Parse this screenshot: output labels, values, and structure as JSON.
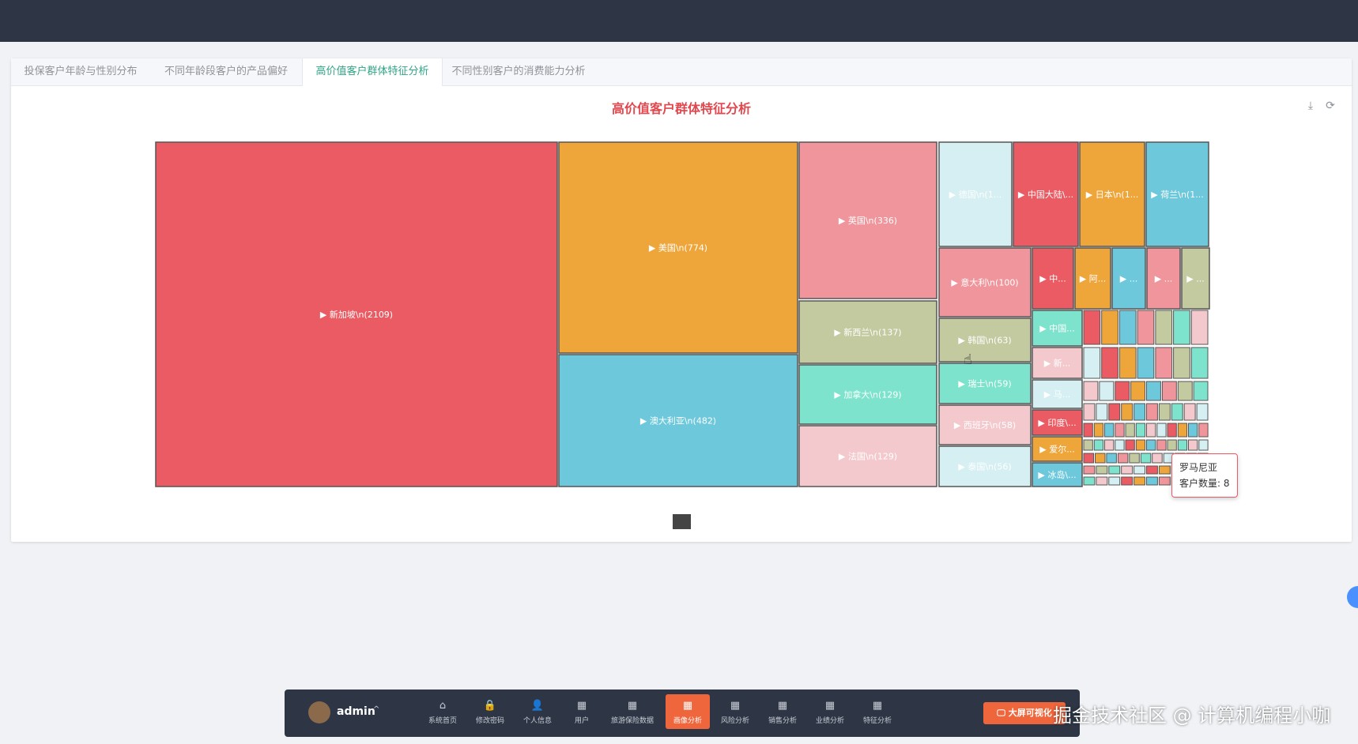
{
  "tabs": [
    {
      "label": "投保客户年龄与性别分布"
    },
    {
      "label": "不同年龄段客户的产品偏好"
    },
    {
      "label": "高价值客户群体特征分析"
    },
    {
      "label": "不同性别客户的消费能力分析"
    }
  ],
  "active_tab": 2,
  "chart_data": {
    "type": "treemap",
    "title": "高价值客户群体特征分析",
    "items": [
      {
        "label": "▶ 新加坡\\n(2109)",
        "color": "#ea5b63"
      },
      {
        "label": "▶ 美国\\n(774)",
        "color": "#eea53a"
      },
      {
        "label": "▶ 澳大利亚\\n(482)",
        "color": "#6cc8da"
      },
      {
        "label": "▶ 英国\\n(336)",
        "color": "#ef959b"
      },
      {
        "label": "▶ 新西兰\\n(137)",
        "color": "#c3caa0"
      },
      {
        "label": "▶ 加拿大\\n(129)",
        "color": "#7ee3cc"
      },
      {
        "label": "▶ 法国\\n(129)",
        "color": "#f4c9cd"
      },
      {
        "label": "▶ 德国\\n(1...",
        "color": "#d5eff3"
      },
      {
        "label": "▶ 中国大陆\\...",
        "color": "#ea5b63"
      },
      {
        "label": "▶ 日本\\n(1...",
        "color": "#eea53a"
      },
      {
        "label": "▶ 荷兰\\n(1...",
        "color": "#6cc8da"
      },
      {
        "label": "▶ 意大利\\n(100)",
        "color": "#ef959b"
      },
      {
        "label": "▶ 韩国\\n(63)",
        "color": "#c3caa0"
      },
      {
        "label": "▶ 瑞士\\n(59)",
        "color": "#7ee3cc"
      },
      {
        "label": "▶ 西班牙\\n(58)",
        "color": "#f4c9cd"
      },
      {
        "label": "▶ 泰国\\n(56)",
        "color": "#d5eff3"
      },
      {
        "label": "▶ 中...",
        "color": "#ea5b63"
      },
      {
        "label": "▶ 阿...",
        "color": "#eea53a"
      },
      {
        "label": "▶ ...",
        "color": "#6cc8da"
      },
      {
        "label": "▶ ...",
        "color": "#ef959b"
      },
      {
        "label": "▶ ...",
        "color": "#c3caa0"
      },
      {
        "label": "▶ 中国...",
        "color": "#7ee3cc"
      },
      {
        "label": "▶ 新...",
        "color": "#f4c9cd"
      },
      {
        "label": "▶ 马...",
        "color": "#d5eff3"
      },
      {
        "label": "▶ 印度\\...",
        "color": "#ea5b63"
      },
      {
        "label": "▶ 爱尔...",
        "color": "#eea53a"
      },
      {
        "label": "▶ 冰岛\\...",
        "color": "#6cc8da"
      }
    ]
  },
  "tooltip": {
    "name": "罗马尼亚",
    "value_line": "客户数量: 8"
  },
  "dock": {
    "username": "admin",
    "items": [
      {
        "label": "系统首页",
        "icon": "home-icon"
      },
      {
        "label": "修改密码",
        "icon": "lock-icon"
      },
      {
        "label": "个人信息",
        "icon": "user-icon"
      },
      {
        "label": "用户",
        "icon": "grid-icon"
      },
      {
        "label": "旅游保险数据",
        "icon": "grid-icon"
      },
      {
        "label": "画像分析",
        "icon": "grid-icon"
      },
      {
        "label": "风险分析",
        "icon": "grid-icon"
      },
      {
        "label": "销售分析",
        "icon": "grid-icon"
      },
      {
        "label": "业绩分析",
        "icon": "grid-icon"
      },
      {
        "label": "特征分析",
        "icon": "grid-icon"
      }
    ],
    "active_index": 5,
    "big_button": "大屏可视化"
  },
  "watermark": "掘金技术社区 @ 计算机编程小咖",
  "colors": {
    "accent": "#f0663c",
    "title": "#e2474e",
    "tab_active": "#2fa584"
  }
}
